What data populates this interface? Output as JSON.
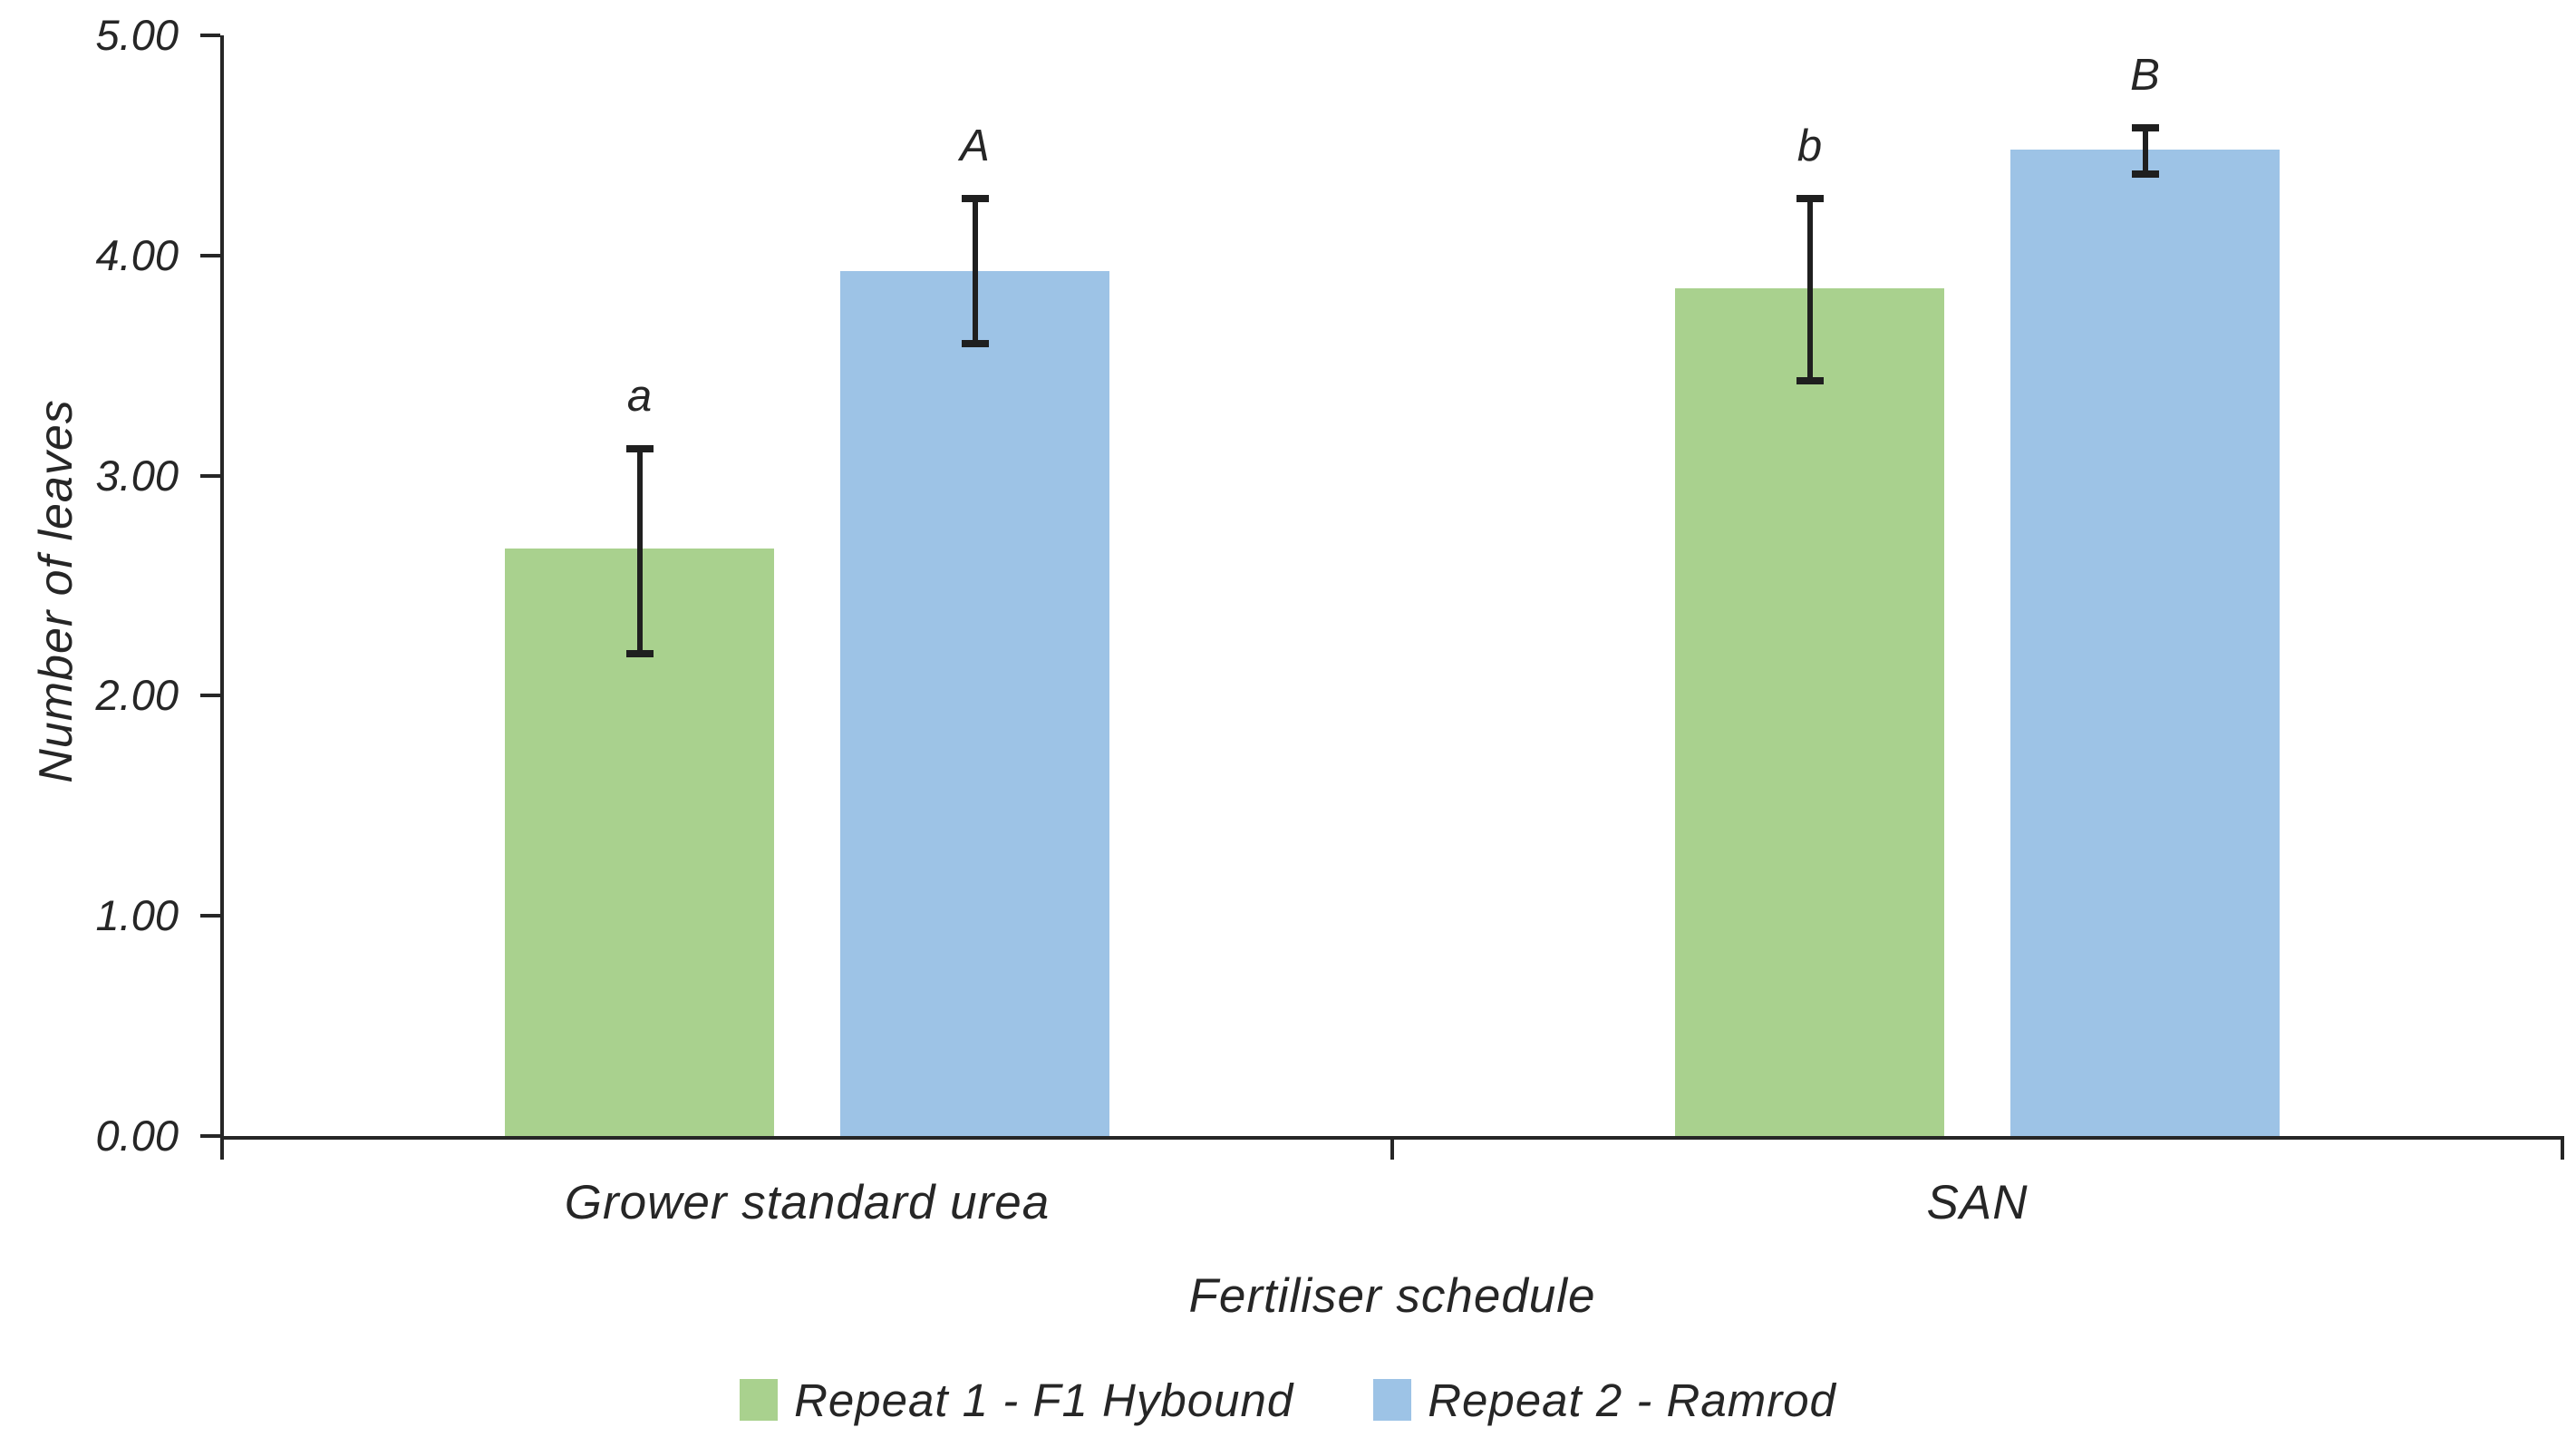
{
  "chart_data": {
    "type": "bar",
    "title": "",
    "xlabel": "Fertiliser schedule",
    "ylabel": "Number of leaves",
    "ylim": [
      0,
      5
    ],
    "ytick_step": 1.0,
    "ytick_labels": [
      "0.00",
      "1.00",
      "2.00",
      "3.00",
      "4.00",
      "5.00"
    ],
    "categories": [
      "Grower standard urea",
      "SAN"
    ],
    "series": [
      {
        "name": "Repeat 1 - F1 Hybound",
        "color": "#a9d18e",
        "values": [
          2.67,
          3.85
        ],
        "error_upper": [
          3.12,
          4.26
        ],
        "error_lower": [
          2.19,
          3.43
        ],
        "sig_letters": [
          "a",
          "b"
        ]
      },
      {
        "name": "Repeat 2 - Ramrod",
        "color": "#9dc3e6",
        "values": [
          3.93,
          4.48
        ],
        "error_upper": [
          4.26,
          4.58
        ],
        "error_lower": [
          3.6,
          4.37
        ],
        "sig_letters": [
          "A",
          "B"
        ]
      }
    ],
    "legend_position": "bottom",
    "grid": false,
    "axis_color": "#262626",
    "error_bar_color": "#1f1f1f",
    "text_color": "#262626",
    "background_color": "#ffffff"
  }
}
